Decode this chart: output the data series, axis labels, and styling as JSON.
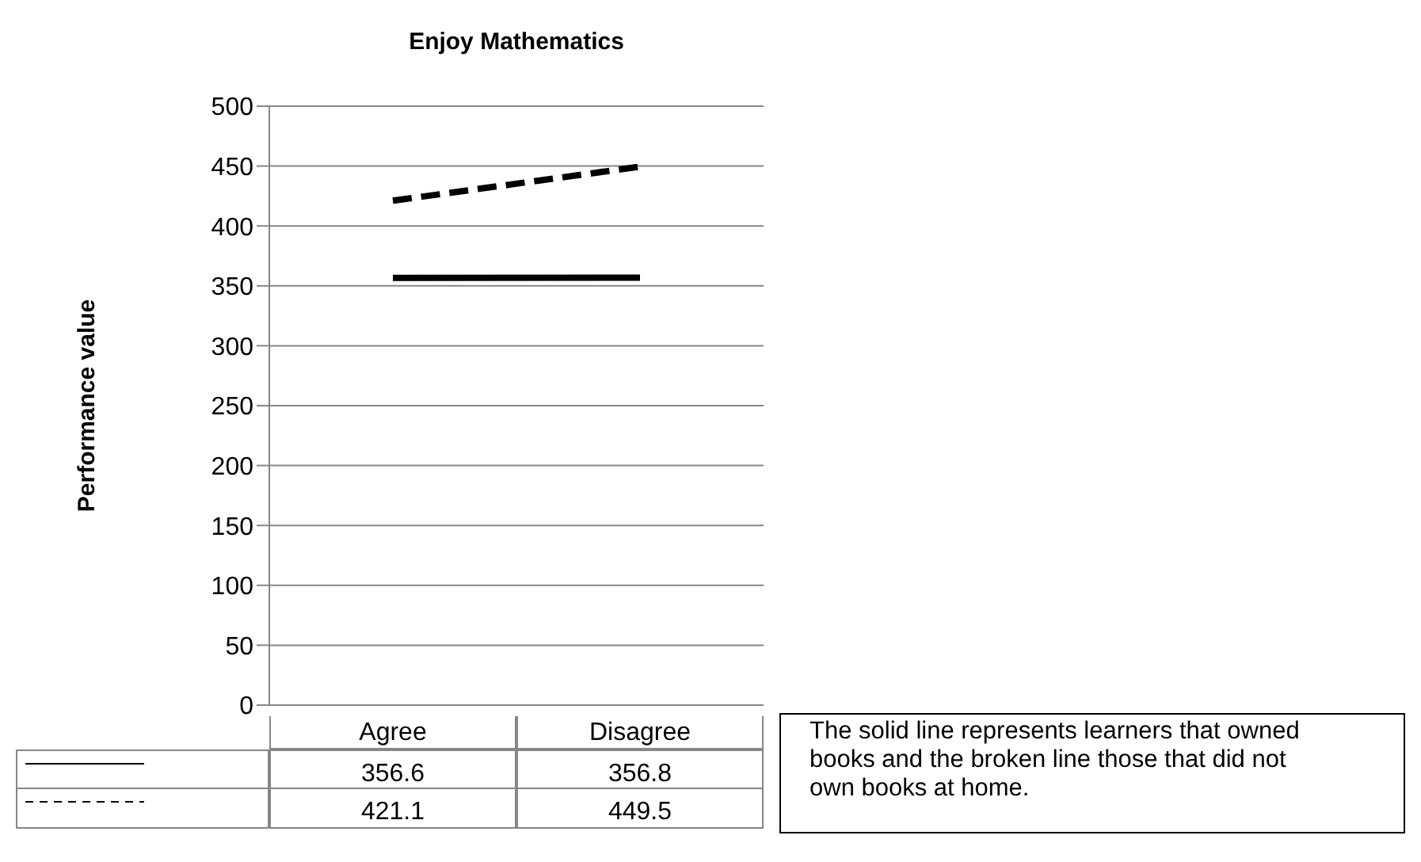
{
  "chart_data": {
    "type": "line",
    "title": "Enjoy Mathematics",
    "ylabel": "Performance value",
    "categories": [
      "Agree",
      "Disagree"
    ],
    "series": [
      {
        "color": "#000000",
        "line_style": "solid",
        "values": [
          356.6,
          356.8
        ]
      },
      {
        "color": "#000000",
        "line_style": "dashed",
        "values": [
          421.1,
          449.5
        ]
      }
    ],
    "ylim": [
      0,
      500
    ],
    "yticks": [
      0,
      50,
      100,
      150,
      200,
      250,
      300,
      350,
      400,
      450,
      500
    ],
    "grid": "y",
    "legend": false,
    "marker": "none",
    "data_labels": true,
    "annotations": [
      "The solid line represents learners that owned books and the broken line those that did not own books at home."
    ]
  }
}
